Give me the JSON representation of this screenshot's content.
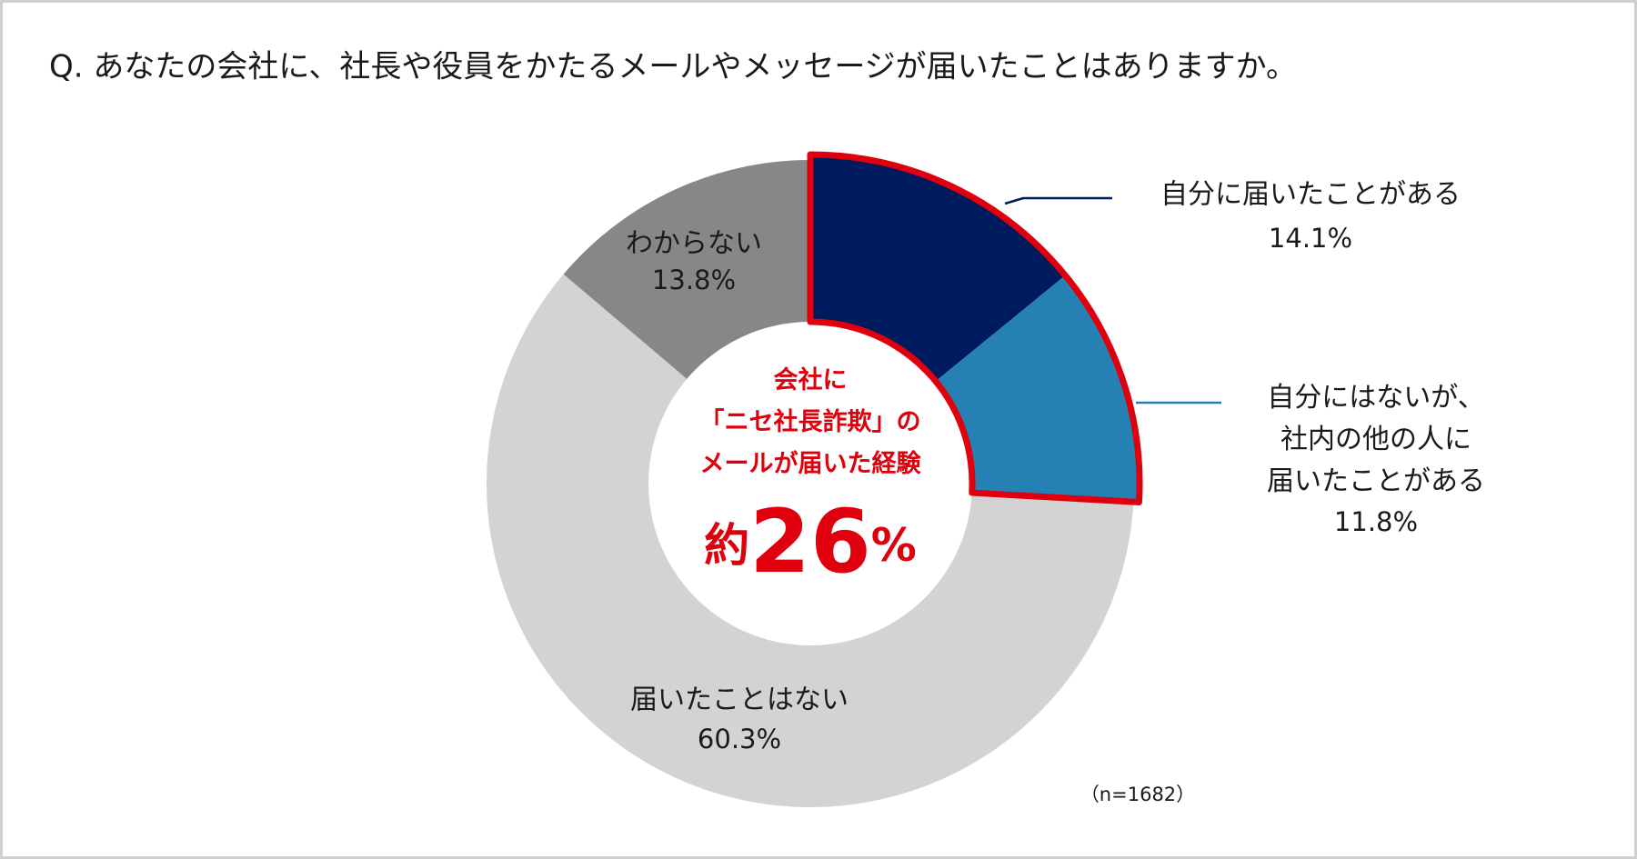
{
  "chart_data": {
    "type": "donut",
    "title": "Q. あなたの会社に、社長や役員をかたるメールやメッセージが届いたことはありますか。",
    "categories": [
      "自分に届いたことがある",
      "自分にはないが、\n社内の他の人に\n届いたことがある",
      "届いたことはない",
      "わからない"
    ],
    "values": [
      14.1,
      11.8,
      60.3,
      13.8
    ],
    "value_labels": [
      "14.1%",
      "11.8%",
      "60.3%",
      "13.8%"
    ],
    "colors": [
      "#001a5e",
      "#2580b3",
      "#d3d3d3",
      "#878787"
    ],
    "highlight_color": "#e0000d",
    "center_text": "会社に\n「ニセ社長詐欺」の\nメールが届いた経験",
    "center_prefix": "約",
    "center_value": "26",
    "center_unit": "%",
    "note": "（n=1682）"
  }
}
